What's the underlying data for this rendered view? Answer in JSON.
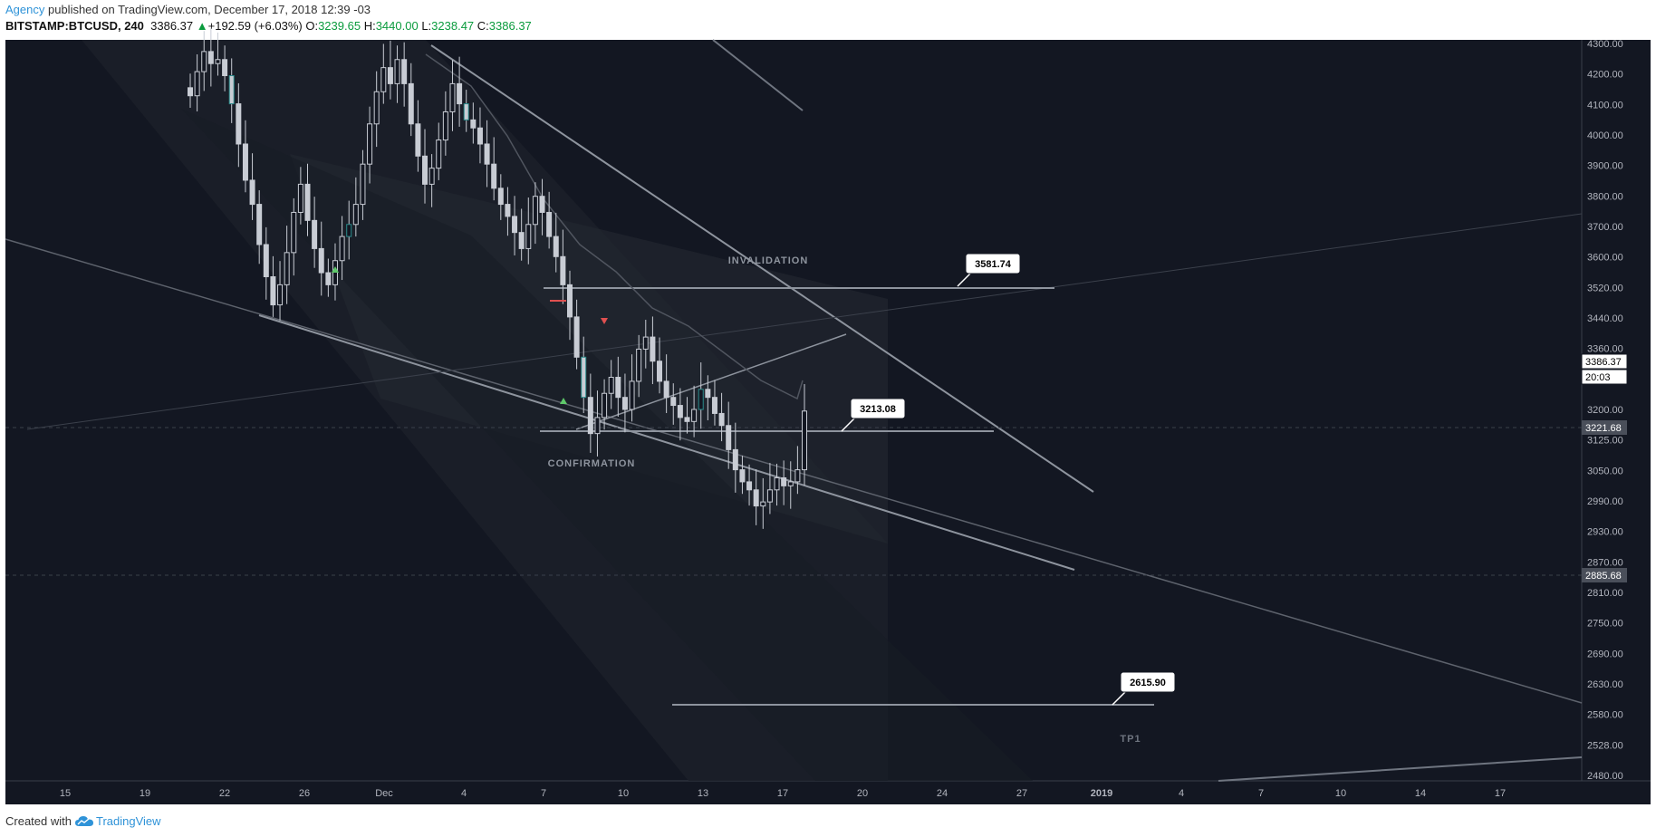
{
  "header": {
    "author": "Agency",
    "published_text": " published on TradingView.com, December 17, 2018 12:39 -03"
  },
  "legend": {
    "symbol": "BITSTAMP:BTCUSD, 240",
    "last": "3386.37",
    "arrow": "▲",
    "change": "+192.59 (+6.03%)",
    "o_label": "O:",
    "o_value": "3239.65",
    "h_label": "H:",
    "h_value": "3440.00",
    "l_label": "L:",
    "l_value": "3238.47",
    "c_label": "C:",
    "c_value": "3386.37"
  },
  "footer": {
    "created_with": "Created with",
    "brand": "TradingView",
    "brand_icon": "tradingview-cloud-icon"
  },
  "colors": {
    "chart_bg": "#131722",
    "axis_bg": "#131722",
    "text_gray": "#b2b5be",
    "line_gray": "#9aa0aa",
    "up_green": "#0a9b3d",
    "marker_green": "#5ec86a",
    "marker_red": "#e05050",
    "teal_candle": "#2a8a8a"
  },
  "chart_data": {
    "type": "candlestick",
    "symbol": "BITSTAMP:BTCUSD",
    "interval": "240",
    "ylim": [
      2480,
      4300
    ],
    "ticks_y": [
      "4300.00",
      "4200.00",
      "4100.00",
      "4000.00",
      "3900.00",
      "3800.00",
      "3700.00",
      "3600.00",
      "3520.00",
      "3440.00",
      "3360.00",
      "3280.00",
      "3200.00",
      "3125.00",
      "3050.00",
      "2990.00",
      "2930.00",
      "2870.00",
      "2810.00",
      "2750.00",
      "2690.00",
      "2630.00",
      "2580.00",
      "2528.00",
      "2480.00"
    ],
    "ticks_x": [
      {
        "label": "15",
        "bold": false
      },
      {
        "label": "19",
        "bold": false
      },
      {
        "label": "22",
        "bold": false
      },
      {
        "label": "26",
        "bold": false
      },
      {
        "label": "Dec",
        "bold": false
      },
      {
        "label": "4",
        "bold": false
      },
      {
        "label": "7",
        "bold": false
      },
      {
        "label": "10",
        "bold": false
      },
      {
        "label": "13",
        "bold": false
      },
      {
        "label": "17",
        "bold": false
      },
      {
        "label": "20",
        "bold": false
      },
      {
        "label": "24",
        "bold": false
      },
      {
        "label": "27",
        "bold": false
      },
      {
        "label": "2019",
        "bold": true
      },
      {
        "label": "4",
        "bold": false
      },
      {
        "label": "7",
        "bold": false
      },
      {
        "label": "10",
        "bold": false
      },
      {
        "label": "14",
        "bold": false
      },
      {
        "label": "17",
        "bold": false
      }
    ],
    "price_tags": [
      {
        "value": "3386.37",
        "style": "current"
      },
      {
        "value": "20:03",
        "style": "countdown"
      },
      {
        "value": "3221.68",
        "style": "level"
      },
      {
        "value": "2885.68",
        "style": "level"
      }
    ],
    "levels": [
      {
        "value": 3581.74,
        "label": "3581.74"
      },
      {
        "value": 3213.08,
        "label": "3213.08"
      },
      {
        "value": 2615.9,
        "label": "2615.90"
      }
    ],
    "annotations": [
      "INVALIDATION",
      "CONFIRMATION",
      "TP1"
    ],
    "markers": [
      {
        "type": "up-triangle"
      },
      {
        "type": "up-triangle"
      },
      {
        "type": "down-triangle"
      },
      {
        "type": "red-dash"
      }
    ],
    "candle_closes": [
      4170,
      4230,
      4280,
      4250,
      4260,
      4220,
      4150,
      4050,
      3960,
      3900,
      3800,
      3720,
      3650,
      3700,
      3780,
      3880,
      3950,
      3860,
      3790,
      3730,
      3700,
      3760,
      3820,
      3850,
      3900,
      4000,
      4100,
      4180,
      4240,
      4200,
      4260,
      4200,
      4100,
      4020,
      3950,
      3990,
      4060,
      4130,
      4200,
      4150,
      4110,
      4090,
      4050,
      4000,
      3940,
      3900,
      3870,
      3830,
      3790,
      3850,
      3920,
      3880,
      3820,
      3770,
      3700,
      3620,
      3520,
      3420,
      3330,
      3370,
      3430,
      3470,
      3420,
      3390,
      3460,
      3540,
      3570,
      3510,
      3460,
      3420,
      3400,
      3370,
      3360,
      3390,
      3440,
      3420,
      3380,
      3350,
      3290,
      3240,
      3210,
      3190,
      3150,
      3160,
      3190,
      3220,
      3200,
      3210,
      3240,
      3386
    ]
  }
}
